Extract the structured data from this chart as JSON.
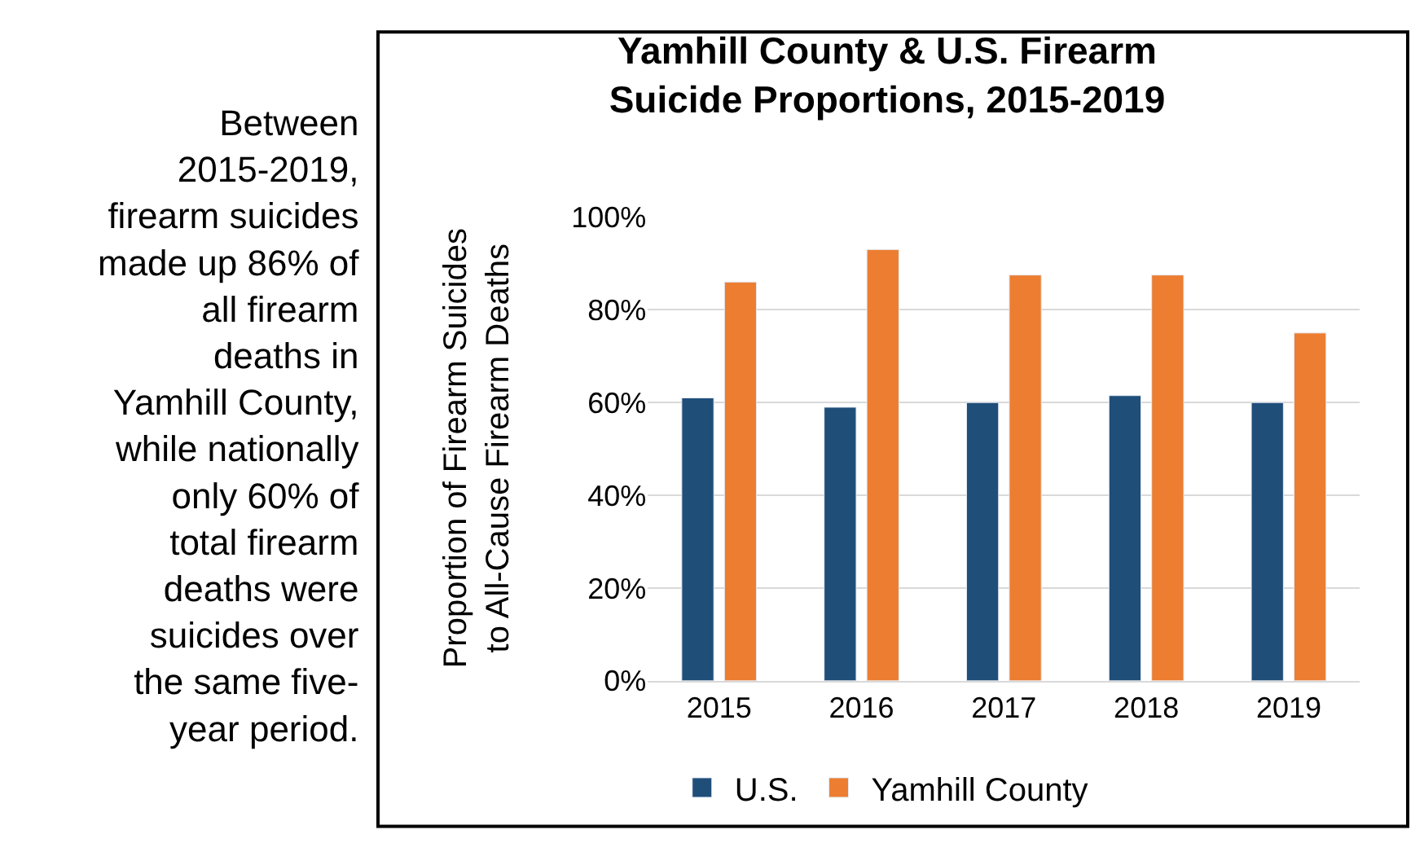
{
  "chart_data": {
    "type": "bar",
    "title": "Yamhill County & U.S. Firearm Suicide Proportions, 2015-2019",
    "ylabel": "Proportion of Firearm Suicides to All-Cause Firearm Deaths",
    "categories": [
      "2015",
      "2016",
      "2017",
      "2018",
      "2019"
    ],
    "series": [
      {
        "name": "U.S.",
        "color": "#1f4e79",
        "values": [
          61,
          59,
          60,
          61.5,
          60
        ]
      },
      {
        "name": "Yamhill County",
        "color": "#ed7d31",
        "values": [
          86,
          93,
          87.5,
          87.5,
          75
        ]
      }
    ],
    "ylim": [
      0,
      100
    ],
    "yticks": [
      {
        "value": 0,
        "label": "0%"
      },
      {
        "value": 20,
        "label": "20%"
      },
      {
        "value": 40,
        "label": "40%"
      },
      {
        "value": 60,
        "label": "60%"
      },
      {
        "value": 80,
        "label": "80%"
      },
      {
        "value": 100,
        "label": "100%"
      }
    ],
    "grid": "y",
    "legend": "bottom",
    "annotations": [
      "Between 2015-2019, firearm suicides made up 86% of all firearm deaths in Yamhill County, while nationally only 60% of total firearm deaths were suicides over the same five-year period."
    ]
  }
}
